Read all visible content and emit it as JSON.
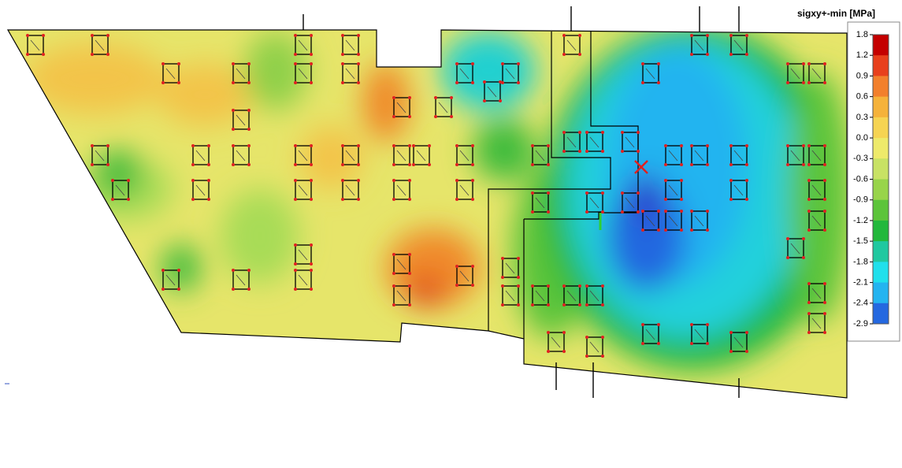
{
  "legend": {
    "title": "sigxy+-min [MPa]",
    "levels": [
      "1.8",
      "1.2",
      "0.9",
      "0.6",
      "0.3",
      "0.0",
      "-0.3",
      "-0.6",
      "-0.9",
      "-1.2",
      "-1.5",
      "-1.8",
      "-2.1",
      "-2.4",
      "-2.9"
    ],
    "colors": [
      "#c40000",
      "#e8401c",
      "#f2802c",
      "#f5b23a",
      "#f6d452",
      "#eeea6a",
      "#c8e264",
      "#98d44a",
      "#5cc43a",
      "#22b83c",
      "#20c8a0",
      "#20e0ec",
      "#24b4f0",
      "#2468e0"
    ]
  }
}
